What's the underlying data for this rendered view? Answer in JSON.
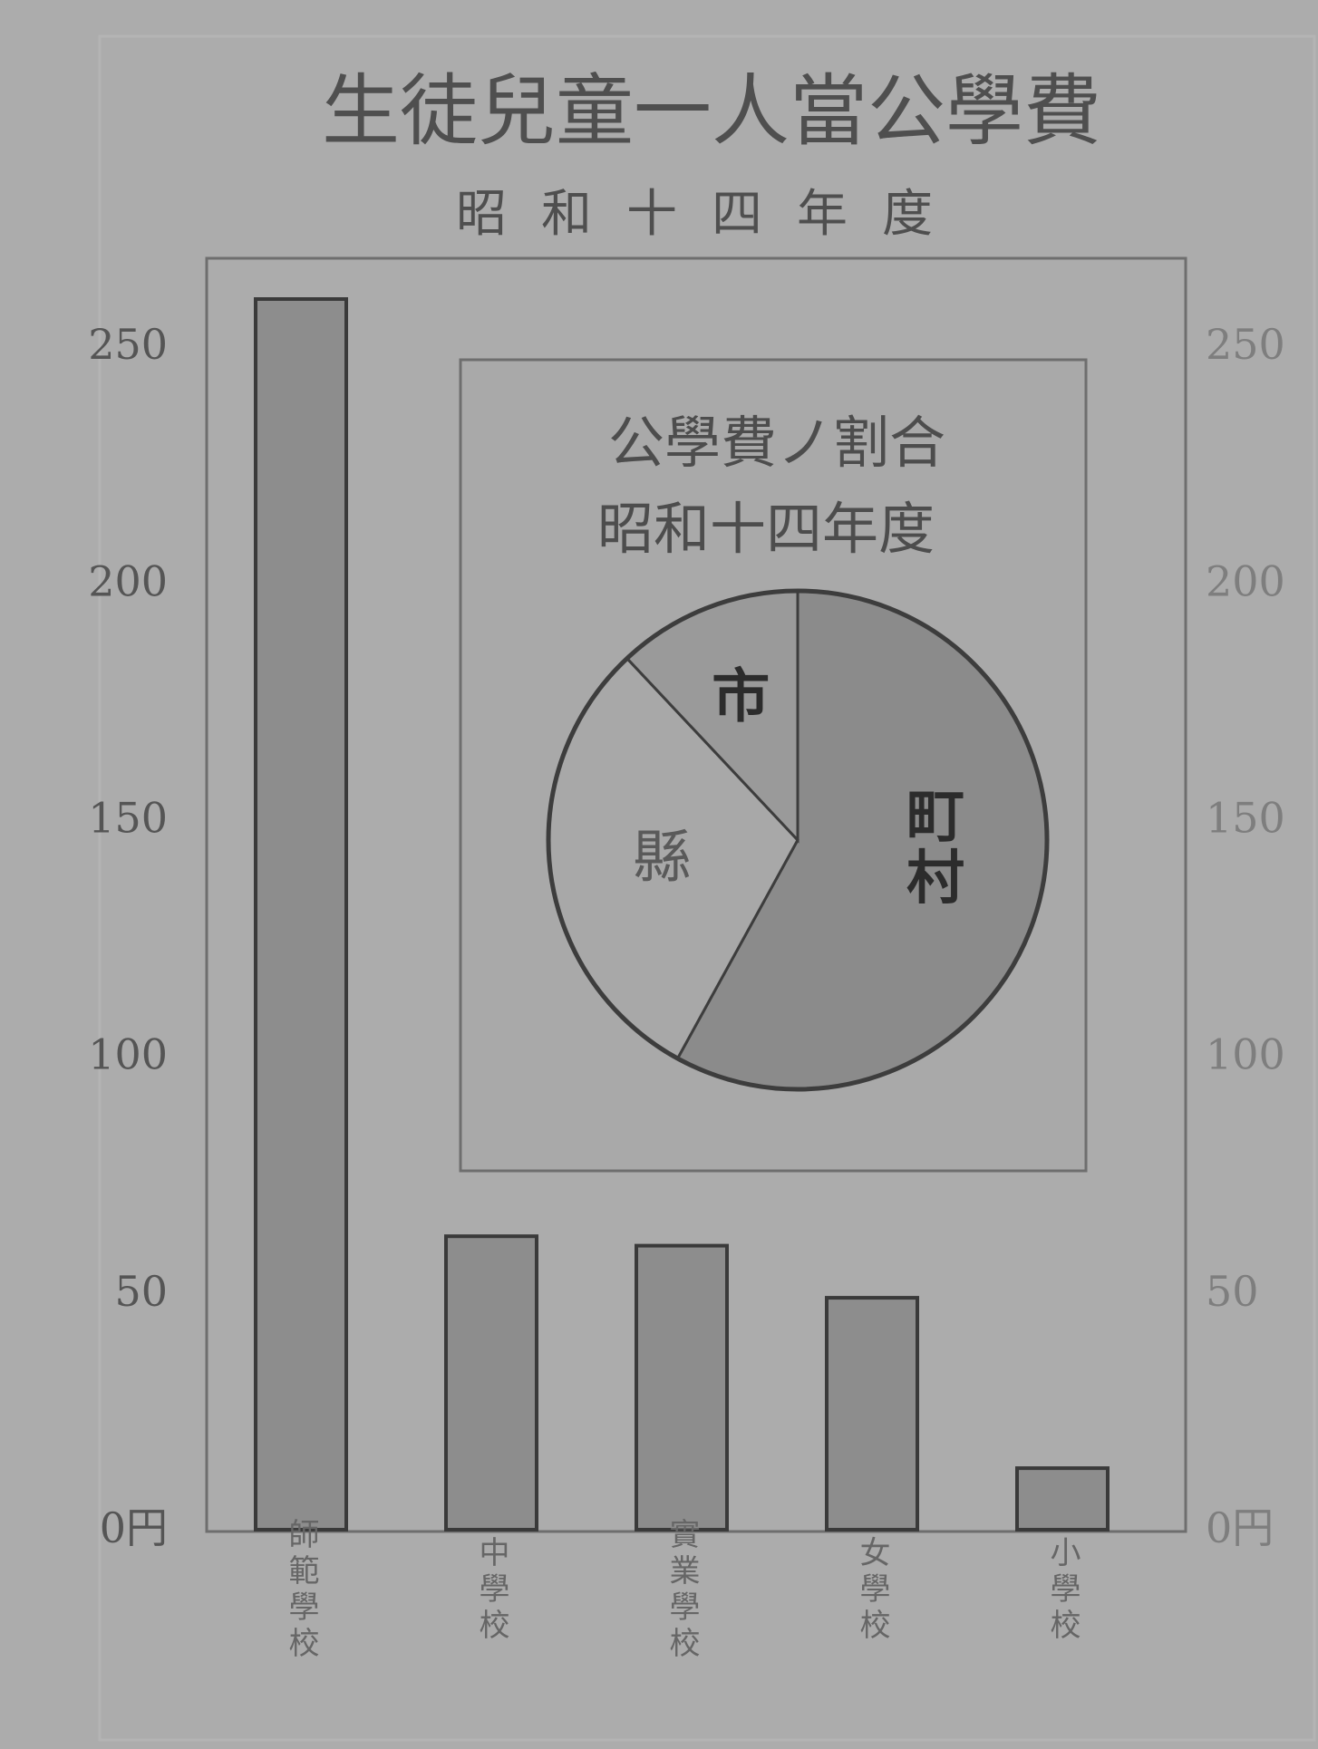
{
  "chart_data": [
    {
      "type": "bar",
      "title": "生徒兒童一人當公學費",
      "subtitle": "昭和十四年度",
      "categories": [
        "師範學校",
        "中學校",
        "實業學校",
        "女學校",
        "小學校"
      ],
      "values": [
        260,
        62,
        60,
        49,
        13
      ],
      "ylim": [
        0,
        260
      ],
      "yticks": [
        0,
        50,
        100,
        150,
        200,
        250
      ],
      "ytick_labels": [
        "0円",
        "50",
        "100",
        "150",
        "200",
        "250"
      ],
      "right_axis_labels": [
        "0円",
        "50",
        "100",
        "150",
        "200",
        "250"
      ],
      "grid": false,
      "legend": "none",
      "colors": {
        "bar": "#8d8d8d",
        "bar_stroke": "#3a3a3a",
        "text": "#4d4d4d",
        "frame": "#6e6e6e"
      }
    },
    {
      "type": "pie",
      "title": "公學費ノ割合",
      "subtitle": "昭和十四年度",
      "labels": [
        "町村",
        "縣",
        "市"
      ],
      "values": [
        58,
        30,
        12
      ],
      "colors": [
        "#8b8b8b",
        "#a8a8a8",
        "#9a9a9a"
      ]
    }
  ]
}
